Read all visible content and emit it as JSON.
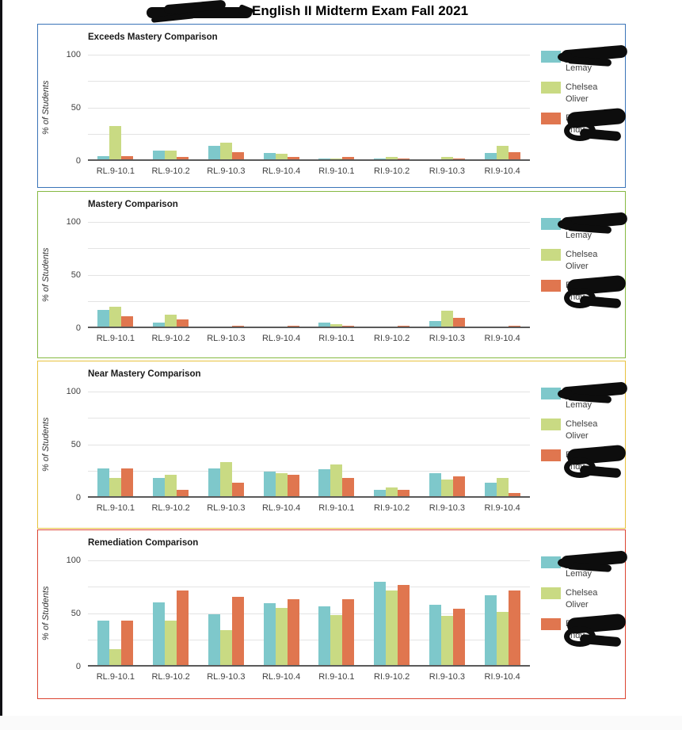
{
  "page": {
    "title": "English II Midterm Exam Fall 2021",
    "title_prefix_redacted": true
  },
  "axis": {
    "ylabel": "% of Students",
    "yticks": [
      "100",
      "50",
      "0"
    ],
    "ymin": 0,
    "ymax": 100
  },
  "categories": [
    "RL.9-10.1",
    "RL.9-10.2",
    "RL.9-10.3",
    "RL.9-10.4",
    "RI.9-10.1",
    "RI.9-10.2",
    "RI.9-10.3",
    "RI.9-10.4"
  ],
  "legend": {
    "position": "right",
    "entries": [
      {
        "id": "teacher-1",
        "color": "#7EC8CB",
        "line1": "Jennif",
        "line2": "Lemay",
        "redacted": true,
        "scribble": "top"
      },
      {
        "id": "teacher-2",
        "color": "#C9DA83",
        "line1": "Chelsea",
        "line2": "Oliver",
        "redacted": false,
        "scribble": "none"
      },
      {
        "id": "teacher-3",
        "color": "#E0764F",
        "line1": "B",
        "line2": "endy",
        "redacted": true,
        "scribble": "full"
      }
    ]
  },
  "chart_data": [
    {
      "type": "bar",
      "title": "Exceeds Mastery Comparison",
      "border_color": "#3A74B8",
      "xlabel": "",
      "ylabel": "% of Students",
      "ylim": [
        0,
        100
      ],
      "grid": true,
      "legend_position": "right",
      "categories": [
        "RL.9-10.1",
        "RL.9-10.2",
        "RL.9-10.3",
        "RL.9-10.4",
        "RI.9-10.1",
        "RI.9-10.2",
        "RI.9-10.3",
        "RI.9-10.4"
      ],
      "series": [
        {
          "name": "Jennif[redacted] Lemay",
          "color": "#7EC8CB",
          "values": [
            3,
            8,
            13,
            6,
            1,
            1,
            0,
            6
          ]
        },
        {
          "name": "Chelsea Oliver",
          "color": "#C9DA83",
          "values": [
            31,
            8,
            16,
            5,
            1,
            2,
            2,
            13
          ]
        },
        {
          "name": "B[redacted]endy",
          "color": "#E0764F",
          "values": [
            3,
            2,
            7,
            2,
            2,
            1,
            1,
            7
          ]
        }
      ]
    },
    {
      "type": "bar",
      "title": "Mastery Comparison",
      "border_color": "#86B943",
      "xlabel": "",
      "ylabel": "% of Students",
      "ylim": [
        0,
        100
      ],
      "grid": true,
      "legend_position": "right",
      "categories": [
        "RL.9-10.1",
        "RL.9-10.2",
        "RL.9-10.3",
        "RL.9-10.4",
        "RI.9-10.1",
        "RI.9-10.2",
        "RI.9-10.3",
        "RI.9-10.4"
      ],
      "series": [
        {
          "name": "Jennif[redacted] Lemay",
          "color": "#7EC8CB",
          "values": [
            16,
            4,
            0,
            0,
            4,
            0,
            5,
            0
          ]
        },
        {
          "name": "Chelsea Oliver",
          "color": "#C9DA83",
          "values": [
            19,
            11,
            0,
            0,
            2,
            0,
            15,
            0
          ]
        },
        {
          "name": "B[redacted]endy",
          "color": "#E0764F",
          "values": [
            10,
            7,
            1,
            1,
            1,
            1,
            8,
            1
          ]
        }
      ]
    },
    {
      "type": "bar",
      "title": "Near Mastery Comparison",
      "border_color": "#E8C23F",
      "xlabel": "",
      "ylabel": "% of Students",
      "ylim": [
        0,
        100
      ],
      "grid": true,
      "legend_position": "right",
      "categories": [
        "RL.9-10.1",
        "RL.9-10.2",
        "RL.9-10.3",
        "RL.9-10.4",
        "RI.9-10.1",
        "RI.9-10.2",
        "RI.9-10.3",
        "RI.9-10.4"
      ],
      "series": [
        {
          "name": "Jennif[redacted] Lemay",
          "color": "#7EC8CB",
          "values": [
            26,
            17,
            26,
            23,
            25,
            6,
            22,
            13
          ]
        },
        {
          "name": "Chelsea Oliver",
          "color": "#C9DA83",
          "values": [
            17,
            20,
            32,
            22,
            30,
            8,
            16,
            17
          ]
        },
        {
          "name": "B[redacted]endy",
          "color": "#E0764F",
          "values": [
            26,
            6,
            13,
            20,
            17,
            6,
            19,
            3
          ]
        }
      ]
    },
    {
      "type": "bar",
      "title": "Remediation Comparison",
      "border_color": "#DC4532",
      "xlabel": "",
      "ylabel": "% of Students",
      "ylim": [
        0,
        100
      ],
      "grid": true,
      "legend_position": "right",
      "categories": [
        "RL.9-10.1",
        "RL.9-10.2",
        "RL.9-10.3",
        "RL.9-10.4",
        "RI.9-10.1",
        "RI.9-10.2",
        "RI.9-10.3",
        "RI.9-10.4"
      ],
      "series": [
        {
          "name": "Jennif[redacted] Lemay",
          "color": "#7EC8CB",
          "values": [
            42,
            59,
            48,
            58,
            55,
            78,
            57,
            66
          ]
        },
        {
          "name": "Chelsea Oliver",
          "color": "#C9DA83",
          "values": [
            15,
            42,
            33,
            54,
            47,
            70,
            46,
            50
          ]
        },
        {
          "name": "B[redacted]endy",
          "color": "#E0764F",
          "values": [
            42,
            70,
            64,
            62,
            62,
            75,
            53,
            70
          ]
        }
      ]
    }
  ]
}
